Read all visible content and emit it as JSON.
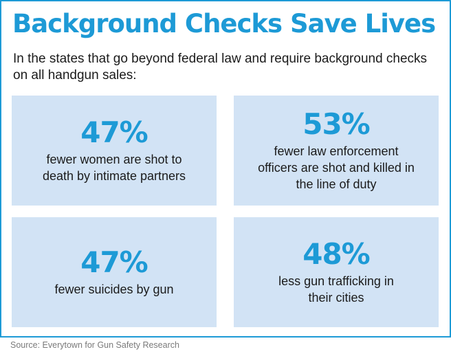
{
  "title": "Background Checks Save Lives",
  "intro": "In the states that go beyond federal law and require background checks on all handgun sales:",
  "stats": [
    {
      "value": "47%",
      "label": "fewer women are shot to death by intimate partners"
    },
    {
      "value": "53%",
      "label": "fewer law enforcement officers are shot and killed in the line of duty"
    },
    {
      "value": "47%",
      "label": "fewer suicides by gun"
    },
    {
      "value": "48%",
      "label": "less gun trafficking in their cities"
    }
  ],
  "source": "Source: Everytown for Gun Safety Research",
  "colors": {
    "accent": "#1d9ad6",
    "card_background": "#d2e3f5",
    "text": "#1b1b1b",
    "source_text": "#7a7a7a"
  }
}
